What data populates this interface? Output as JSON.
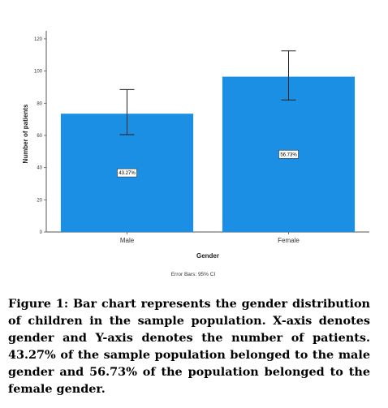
{
  "chart_data": {
    "type": "bar",
    "categories": [
      "Male",
      "Female"
    ],
    "values": [
      73.5,
      96.5
    ],
    "error_bars": [
      [
        60.5,
        88.5
      ],
      [
        82,
        112.5
      ]
    ],
    "data_labels": [
      "43.27%",
      "56.73%"
    ],
    "xlabel": "Gender",
    "ylabel": "Number of patients",
    "yticks": [
      "0",
      "20",
      "40",
      "60",
      "80",
      "100",
      "120"
    ],
    "ylim": [
      0,
      125
    ],
    "bar_color": "#1a8fe3",
    "footnote": "Error Bars: 95% CI"
  },
  "caption": "Figure 1: Bar chart represents the gender distribution of children in the sample population. X-axis denotes gender and Y-axis denotes the number of patients. 43.27% of the sample population belonged to the male gender and 56.73% of the population belonged to the female gender."
}
